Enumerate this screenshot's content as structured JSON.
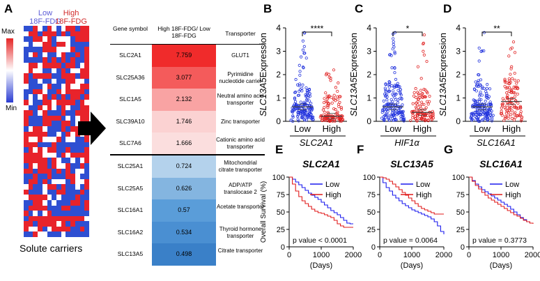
{
  "panel_a": {
    "letter": "A",
    "group_low_line1": "Low",
    "group_low_line2": "18F-FDG",
    "group_high_line1": "High",
    "group_high_line2": "18F-FDG",
    "scale_max": "Max",
    "scale_min": "Min",
    "footer": "Solute carriers",
    "colors": {
      "high": "#e8232b",
      "low": "#2e4fd2",
      "neutral": "#ffffff"
    }
  },
  "table": {
    "headers": {
      "gene": "Gene symbol",
      "ratio": "High 18F-FDG/ Low 18F-FDG",
      "transporter": "Transporter"
    },
    "rows": [
      {
        "gene": "SLC2A1",
        "ratio": "7.759",
        "transporter": "GLUT1",
        "color": "#f02b2b"
      },
      {
        "gene": "SLC25A36",
        "ratio": "3.077",
        "transporter": "Pyrimidine nucleotide carrier",
        "color": "#f45b5b"
      },
      {
        "gene": "SLC1A5",
        "ratio": "2.132",
        "transporter": "Neutral amino acid transporter",
        "color": "#f9a3a3"
      },
      {
        "gene": "SLC39A10",
        "ratio": "1.746",
        "transporter": "Zinc transporter",
        "color": "#fbd2d2"
      },
      {
        "gene": "SLC7A6",
        "ratio": "1.666",
        "transporter": "Cationic amino acid transporter",
        "color": "#fbdede"
      },
      {
        "gene": "SLC25A1",
        "ratio": "0.724",
        "transporter": "Mitochondrial citrate transporter",
        "color": "#b4d2ec"
      },
      {
        "gene": "SLC25A5",
        "ratio": "0.626",
        "transporter": "ADP/ATP translocase 2",
        "color": "#84b5e0"
      },
      {
        "gene": "SLC16A1",
        "ratio": "0.57",
        "transporter": "Acetate transporter",
        "color": "#5a9dd9"
      },
      {
        "gene": "SLC16A2",
        "ratio": "0.534",
        "transporter": "Thyroid hormone transporter",
        "color": "#4a8fd2"
      },
      {
        "gene": "SLC13A5",
        "ratio": "0.498",
        "transporter": "Citrate transporter",
        "color": "#3a80c8"
      }
    ]
  },
  "chart_data": [
    {
      "panel": "B",
      "type": "scatter",
      "ylabel_gene": "SLC13A5",
      "ylabel_rest": "Expression",
      "categories": [
        "Low",
        "High"
      ],
      "xlabel": "SLC2A1",
      "ylim": [
        0,
        4
      ],
      "yticks": [
        "0",
        "1",
        "2",
        "3",
        "4"
      ],
      "means": [
        0.62,
        0.22
      ],
      "significance": "****",
      "max_points": [
        3.8,
        2.2
      ],
      "colors": [
        "#2233dd",
        "#e02020"
      ]
    },
    {
      "panel": "C",
      "type": "scatter",
      "ylabel_gene": "SLC13A5",
      "ylabel_rest": "Expression",
      "categories": [
        "Low",
        "High"
      ],
      "xlabel": "HIF1α",
      "ylim": [
        0,
        4
      ],
      "yticks": [
        "0",
        "1",
        "2",
        "3",
        "4"
      ],
      "means": [
        0.62,
        0.38
      ],
      "significance": "*",
      "max_points": [
        3.8,
        3.7
      ],
      "colors": [
        "#2233dd",
        "#e02020"
      ]
    },
    {
      "panel": "D",
      "type": "scatter",
      "ylabel_gene": "SLC13A5",
      "ylabel_rest": "Expression",
      "categories": [
        "Low",
        "High"
      ],
      "xlabel": "SLC16A1",
      "ylim": [
        0,
        4
      ],
      "yticks": [
        "0",
        "1",
        "2",
        "3",
        "4"
      ],
      "means": [
        0.62,
        0.85
      ],
      "significance": "**",
      "max_points": [
        3.8,
        3.4
      ],
      "colors": [
        "#2233dd",
        "#e02020"
      ]
    },
    {
      "panel": "E",
      "type": "line",
      "title": "SLC2A1",
      "xlabel": "(Days)",
      "ylabel": "Overall Survival (%)",
      "xlim": [
        0,
        2000
      ],
      "ylim": [
        0,
        100
      ],
      "xticks": [
        "0",
        "1000",
        "2000"
      ],
      "yticks": [
        "0",
        "25",
        "50",
        "75",
        "100"
      ],
      "pvalue": "p value  < 0.0001",
      "series": [
        {
          "name": "Low",
          "color": "#1a1aee",
          "x": [
            0,
            100,
            200,
            300,
            400,
            500,
            600,
            700,
            800,
            900,
            1000,
            1100,
            1200,
            1300,
            1400,
            1500,
            1600,
            1700,
            1800,
            1900,
            2000
          ],
          "y": [
            100,
            97,
            93,
            89,
            85,
            81,
            77,
            74,
            71,
            68,
            64,
            60,
            56,
            52,
            49,
            46,
            42,
            38,
            34,
            33,
            33
          ]
        },
        {
          "name": "High",
          "color": "#e01a1a",
          "x": [
            0,
            100,
            200,
            300,
            400,
            500,
            600,
            700,
            800,
            900,
            1000,
            1100,
            1200,
            1300,
            1400,
            1500,
            1600,
            1700,
            1800,
            1900,
            2000
          ],
          "y": [
            100,
            90,
            80,
            72,
            66,
            62,
            58,
            54,
            51,
            49,
            48,
            46,
            44,
            42,
            38,
            33,
            30,
            28,
            28,
            28,
            28
          ]
        }
      ]
    },
    {
      "panel": "F",
      "type": "line",
      "title": "SLC13A5",
      "xlabel": "(Days)",
      "ylabel": "Overall Survival (%)",
      "xlim": [
        0,
        2000
      ],
      "ylim": [
        0,
        100
      ],
      "xticks": [
        "0",
        "1000",
        "2000"
      ],
      "yticks": [
        "0",
        "25",
        "50",
        "75",
        "100"
      ],
      "pvalue": "p value  = 0.0064",
      "series": [
        {
          "name": "Low",
          "color": "#1a1aee",
          "x": [
            0,
            100,
            200,
            300,
            400,
            500,
            600,
            700,
            800,
            900,
            1000,
            1100,
            1200,
            1300,
            1400,
            1500,
            1600,
            1700,
            1800,
            1900,
            2000
          ],
          "y": [
            100,
            92,
            85,
            80,
            74,
            70,
            66,
            62,
            59,
            56,
            53,
            51,
            49,
            47,
            45,
            43,
            40,
            36,
            30,
            22,
            18
          ]
        },
        {
          "name": "High",
          "color": "#e01a1a",
          "x": [
            0,
            100,
            200,
            300,
            400,
            500,
            600,
            700,
            800,
            900,
            1000,
            1100,
            1200,
            1300,
            1400,
            1500,
            1600,
            1700,
            1800,
            1900,
            2000
          ],
          "y": [
            100,
            99,
            97,
            94,
            90,
            86,
            82,
            78,
            74,
            70,
            66,
            62,
            58,
            55,
            53,
            51,
            49,
            47,
            47,
            47,
            47
          ]
        }
      ]
    },
    {
      "panel": "G",
      "type": "line",
      "title": "SLC16A1",
      "xlabel": "(Days)",
      "ylabel": "Overall Survival (%)",
      "xlim": [
        0,
        2000
      ],
      "ylim": [
        0,
        100
      ],
      "xticks": [
        "0",
        "1000",
        "2000"
      ],
      "yticks": [
        "0",
        "25",
        "50",
        "75",
        "100"
      ],
      "pvalue": "p value  = 0.3773",
      "series": [
        {
          "name": "Low",
          "color": "#1a1aee",
          "x": [
            0,
            100,
            200,
            300,
            400,
            500,
            600,
            700,
            800,
            900,
            1000,
            1100,
            1200,
            1300,
            1400,
            1500,
            1600,
            1700,
            1800,
            1900,
            2000
          ],
          "y": [
            100,
            95,
            90,
            86,
            82,
            79,
            76,
            73,
            70,
            67,
            64,
            61,
            58,
            54,
            50,
            46,
            42,
            39,
            36,
            34,
            34
          ]
        },
        {
          "name": "High",
          "color": "#e01a1a",
          "x": [
            0,
            100,
            200,
            300,
            400,
            500,
            600,
            700,
            800,
            900,
            1000,
            1100,
            1200,
            1300,
            1400,
            1500,
            1600,
            1700,
            1800,
            1900,
            2000
          ],
          "y": [
            100,
            94,
            88,
            83,
            78,
            74,
            70,
            67,
            64,
            61,
            58,
            55,
            52,
            49,
            46,
            44,
            41,
            38,
            36,
            34,
            33
          ]
        }
      ]
    }
  ]
}
